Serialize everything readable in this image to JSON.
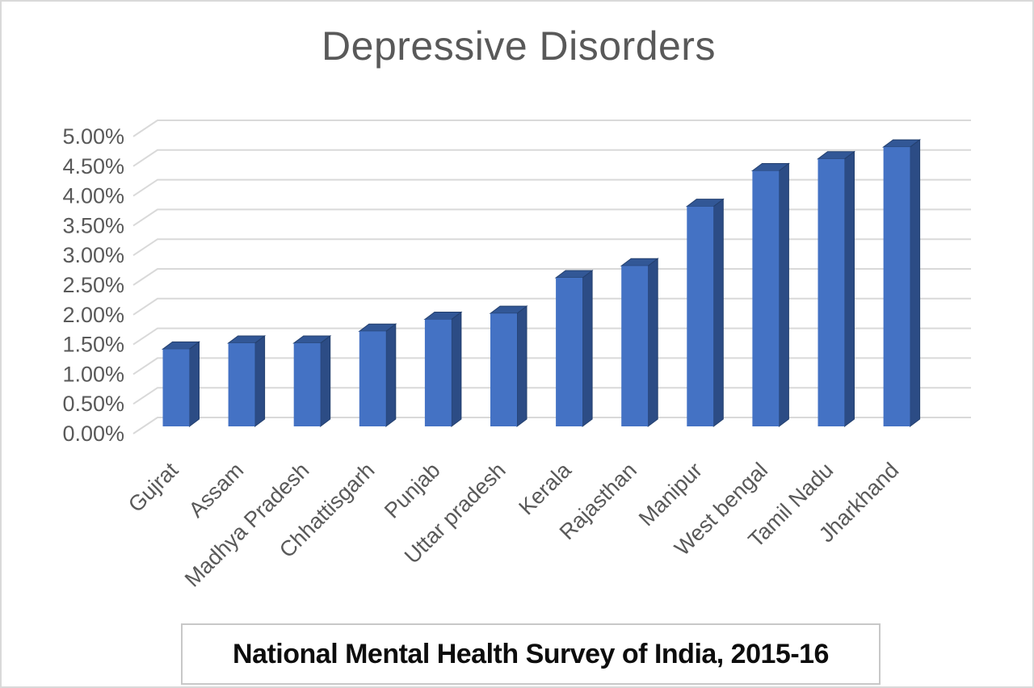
{
  "title": "Depressive Disorders",
  "caption": "National Mental Health Survey of India, 2015-16",
  "colors": {
    "bar_front": "#4472C4",
    "bar_side": "#2C4C85",
    "bar_top": "#325796",
    "bar_edge": "#24406E",
    "grid": "#D9D9D9",
    "axis_text": "#595959",
    "title_text": "#595959",
    "caption_text": "#0D0D0D",
    "caption_border": "#C8C8C8",
    "frame_border": "#D9D9D9",
    "background": "#FFFFFF"
  },
  "chart_data": {
    "type": "bar",
    "style": "3d-column",
    "title": "Depressive Disorders",
    "xlabel": "",
    "ylabel": "",
    "categories": [
      "Gujrat",
      "Assam",
      "Madhya Pradesh",
      "Chhattisgarh",
      "Punjab",
      "Uttar pradesh",
      "Kerala",
      "Rajasthan",
      "Manipur",
      "West bengal",
      "Tamil Nadu",
      "Jharkhand"
    ],
    "values": [
      1.3,
      1.4,
      1.4,
      1.6,
      1.8,
      1.9,
      2.5,
      2.7,
      3.7,
      4.3,
      4.5,
      4.7
    ],
    "unit": "%",
    "ylim": [
      0,
      5
    ],
    "ytick_step": 0.5,
    "ytick_labels": [
      "0.00%",
      "0.50%",
      "1.00%",
      "1.50%",
      "2.00%",
      "2.50%",
      "3.00%",
      "3.50%",
      "4.00%",
      "4.50%",
      "5.00%"
    ],
    "grid": true,
    "legend": false,
    "x_label_rotation_deg": 45,
    "source_caption": "National Mental Health Survey of India, 2015-16"
  }
}
